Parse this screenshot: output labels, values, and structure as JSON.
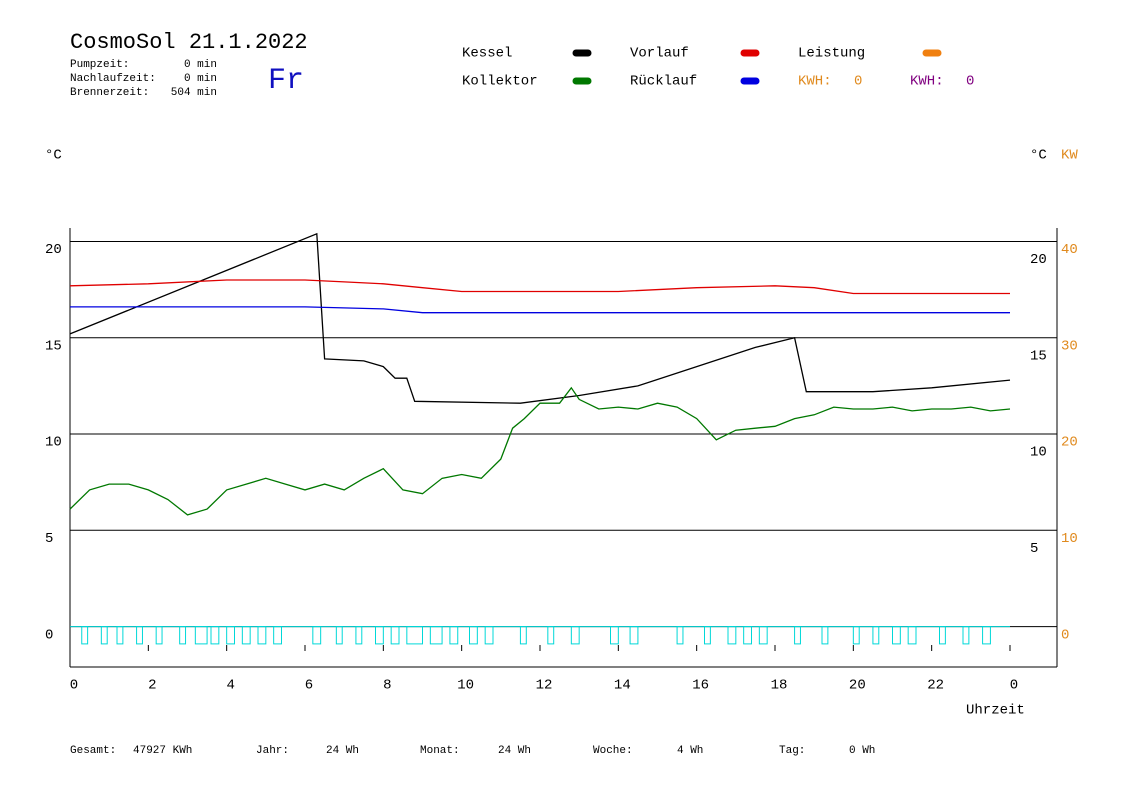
{
  "header": {
    "title": "CosmoSol 21.1.2022",
    "day": "Fr",
    "stats": [
      {
        "label": "Pumpzeit:",
        "value": "0 min"
      },
      {
        "label": "Nachlaufzeit:",
        "value": "0 min"
      },
      {
        "label": "Brennerzeit:",
        "value": "504 min"
      }
    ],
    "kwh": [
      {
        "label": "KWH:",
        "value": 0,
        "color": "#e08a1e"
      },
      {
        "label": "KWH:",
        "value": 0,
        "color": "#800080"
      }
    ]
  },
  "chart_data": {
    "type": "line",
    "y_unit_left": "°C",
    "y_unit_right": "°C",
    "y2_unit": "KW",
    "xlabel": "Uhrzeit",
    "xlim": [
      0,
      24
    ],
    "xticks": [
      0,
      2,
      4,
      6,
      8,
      10,
      12,
      14,
      16,
      18,
      20,
      22,
      {
        "value": 24,
        "label": "0"
      }
    ],
    "ylim": [
      -2.1,
      20.7
    ],
    "yticks": [
      0,
      5,
      10,
      15,
      20
    ],
    "yticks_right": [
      20,
      15,
      10,
      5
    ],
    "y2lim": [
      -4.2,
      41.4
    ],
    "y2ticks": [
      0,
      10,
      20,
      30,
      40
    ],
    "grid": true,
    "series": [
      {
        "name": "Kessel",
        "color": "#000000",
        "x": [
          0,
          6.3,
          6.5,
          7.5,
          8,
          8.3,
          8.6,
          8.8,
          11.5,
          13,
          14.5,
          16,
          17.5,
          18.5,
          18.8,
          20.5,
          22,
          24
        ],
        "values": [
          15.2,
          20.4,
          13.9,
          13.8,
          13.5,
          12.9,
          12.9,
          11.7,
          11.6,
          12.0,
          12.5,
          13.5,
          14.5,
          15.0,
          12.2,
          12.2,
          12.4,
          12.8
        ]
      },
      {
        "name": "Kollektor",
        "color": "#007800",
        "x": [
          0,
          0.5,
          1,
          1.5,
          2,
          2.5,
          3,
          3.5,
          4,
          4.5,
          5,
          5.5,
          6,
          6.5,
          7,
          7.5,
          8,
          8.5,
          9,
          9.5,
          10,
          10.5,
          11,
          11.3,
          11.6,
          12,
          12.5,
          12.8,
          13,
          13.5,
          14,
          14.5,
          15,
          15.5,
          16,
          16.5,
          17,
          17.5,
          18,
          18.5,
          19,
          19.5,
          20,
          20.5,
          21,
          21.5,
          22,
          22.5,
          23,
          23.5,
          24
        ],
        "values": [
          6.1,
          7.1,
          7.4,
          7.4,
          7.1,
          6.6,
          5.8,
          6.1,
          7.1,
          7.4,
          7.7,
          7.4,
          7.1,
          7.4,
          7.1,
          7.7,
          8.2,
          7.1,
          6.9,
          7.7,
          7.9,
          7.7,
          8.7,
          10.3,
          10.8,
          11.6,
          11.6,
          12.4,
          11.8,
          11.3,
          11.4,
          11.3,
          11.6,
          11.4,
          10.8,
          9.7,
          10.2,
          10.3,
          10.4,
          10.8,
          11.0,
          11.4,
          11.3,
          11.3,
          11.4,
          11.2,
          11.3,
          11.3,
          11.4,
          11.2,
          11.3
        ]
      },
      {
        "name": "Vorlauf",
        "color": "#e00000",
        "x": [
          0,
          2,
          4,
          6,
          7,
          8,
          9,
          10,
          12,
          14,
          16,
          18,
          19,
          20,
          22,
          24
        ],
        "values": [
          17.7,
          17.8,
          18.0,
          18.0,
          17.9,
          17.8,
          17.6,
          17.4,
          17.4,
          17.4,
          17.6,
          17.7,
          17.6,
          17.3,
          17.3,
          17.3
        ]
      },
      {
        "name": "Rücklauf",
        "color": "#0000e0",
        "x": [
          0,
          6,
          8,
          9,
          12,
          16,
          20,
          24
        ],
        "values": [
          16.6,
          16.6,
          16.5,
          16.3,
          16.3,
          16.3,
          16.3,
          16.3
        ]
      },
      {
        "name": "Leistung",
        "color": "#f08010",
        "axis": "y2",
        "x": [],
        "values": []
      }
    ],
    "pump": {
      "color": "#00d8d8",
      "value": -0.9,
      "intervals": [
        [
          0.3,
          0.45
        ],
        [
          0.8,
          0.95
        ],
        [
          1.2,
          1.35
        ],
        [
          1.7,
          1.85
        ],
        [
          2.2,
          2.35
        ],
        [
          2.8,
          2.95
        ],
        [
          3.2,
          3.5
        ],
        [
          3.6,
          3.8
        ],
        [
          4.0,
          4.2
        ],
        [
          4.4,
          4.6
        ],
        [
          4.8,
          5.0
        ],
        [
          5.2,
          5.4
        ],
        [
          6.2,
          6.4
        ],
        [
          6.8,
          6.95
        ],
        [
          7.3,
          7.45
        ],
        [
          7.8,
          8.0
        ],
        [
          8.2,
          8.4
        ],
        [
          8.6,
          9.0
        ],
        [
          9.2,
          9.5
        ],
        [
          9.7,
          9.9
        ],
        [
          10.2,
          10.4
        ],
        [
          10.6,
          10.8
        ],
        [
          11.5,
          11.65
        ],
        [
          12.2,
          12.35
        ],
        [
          12.8,
          13.0
        ],
        [
          13.8,
          14.0
        ],
        [
          14.3,
          14.5
        ],
        [
          15.5,
          15.65
        ],
        [
          16.2,
          16.35
        ],
        [
          16.8,
          17.0
        ],
        [
          17.2,
          17.4
        ],
        [
          17.6,
          17.8
        ],
        [
          18.5,
          18.65
        ],
        [
          19.2,
          19.35
        ],
        [
          20.0,
          20.15
        ],
        [
          20.5,
          20.65
        ],
        [
          21.0,
          21.2
        ],
        [
          21.4,
          21.6
        ],
        [
          22.2,
          22.35
        ],
        [
          22.8,
          22.95
        ],
        [
          23.3,
          23.5
        ]
      ]
    }
  },
  "footer": [
    {
      "label": "Gesamt:",
      "value": "47927 KWh"
    },
    {
      "label": "Jahr:",
      "value": "24 Wh"
    },
    {
      "label": "Monat:",
      "value": "24 Wh"
    },
    {
      "label": "Woche:",
      "value": "4 Wh"
    },
    {
      "label": "Tag:",
      "value": "0 Wh"
    }
  ]
}
